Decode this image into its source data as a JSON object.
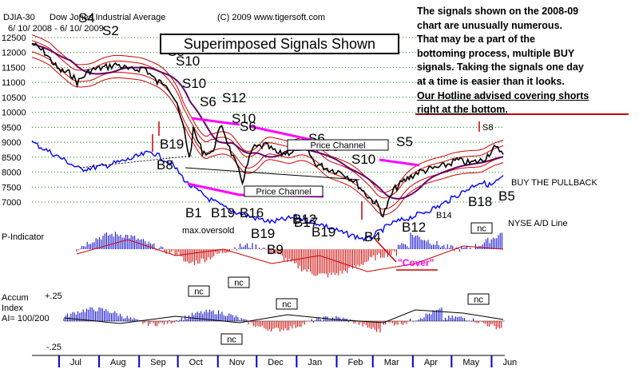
{
  "header": {
    "symbol": "DJIA-30",
    "name": "Dow Jones Industrial Average",
    "copyright": "(C) 2009 www.tigersoft.com",
    "date_range": "6/ 10/ 2008 - 6/ 10/ 2009"
  },
  "overlay_title": "Superimposed Signals Shown",
  "note": {
    "lines": [
      "The signals shown on the 2008-09",
      "chart are unusually numerous.",
      "That may be a part of the",
      "bottoming process, multiple BUY",
      "signals.  Taking the signals one day",
      "at a time is easier than it looks."
    ],
    "hotline_lines": [
      "Our Hotline advised covering shorts",
      "right at the bottom."
    ]
  },
  "colors": {
    "price": "#000000",
    "bands": "#cc0000",
    "ad_line": "#0000ff",
    "pink": "#ff00ff",
    "indicator_pos": "#0000cc",
    "indicator_neg": "#cc0000",
    "grid": "#008800"
  },
  "chart_data": {
    "type": "line",
    "price_panel": {
      "y_ticks": [
        12500,
        12000,
        11500,
        11000,
        10500,
        10000,
        9500,
        9000,
        8500,
        8000,
        7500,
        7000
      ],
      "ylim": [
        6500,
        12600
      ],
      "months": [
        "Jul",
        "Aug",
        "Sep",
        "Oct",
        "Nov",
        "Dec",
        "Jan",
        "Feb",
        "Mar",
        "Apr",
        "May",
        "Jun"
      ],
      "series": [
        {
          "x": [
            "2008-06-10",
            "2008-06-20",
            "2008-07-01",
            "2008-07-10",
            "2008-07-15",
            "2008-07-25",
            "2008-08-05",
            "2008-08-15",
            "2008-08-25",
            "2008-09-05",
            "2008-09-15",
            "2008-09-22",
            "2008-09-29",
            "2008-10-06",
            "2008-10-10",
            "2008-10-13",
            "2008-10-20",
            "2008-10-27",
            "2008-11-04",
            "2008-11-10",
            "2008-11-20",
            "2008-11-28",
            "2008-12-08",
            "2008-12-18",
            "2008-12-30",
            "2009-01-06",
            "2009-01-15",
            "2009-01-26",
            "2009-02-05",
            "2009-02-15",
            "2009-02-25",
            "2009-03-05",
            "2009-03-09",
            "2009-03-17",
            "2009-03-25",
            "2009-04-05",
            "2009-04-15",
            "2009-04-25",
            "2009-05-05",
            "2009-05-15",
            "2009-05-25",
            "2009-06-03",
            "2009-06-10"
          ],
          "values": [
            12300,
            12000,
            11400,
            11300,
            11000,
            11400,
            11500,
            11600,
            11400,
            11500,
            11000,
            11000,
            10400,
            9400,
            8450,
            9400,
            8700,
            8600,
            9600,
            8800,
            7700,
            8800,
            8900,
            8600,
            8700,
            9000,
            8300,
            8100,
            8000,
            7700,
            7200,
            6900,
            6550,
            7400,
            7700,
            8000,
            8100,
            8200,
            8400,
            8300,
            8400,
            8800,
            8700
          ]
        }
      ]
    },
    "indicators": [
      {
        "name": "P-Indicator"
      },
      {
        "name": "Accum Index",
        "params": "AI= 100/200",
        "y_ticks": [
          "+.25",
          "-.25"
        ]
      }
    ],
    "annotations": {
      "signals": [
        "S4",
        "S2",
        "S8",
        "S10",
        "S10",
        "S6",
        "S12",
        "S10",
        "S6",
        "S6",
        "S5",
        "S5",
        "S10",
        "S8",
        "B19",
        "B8",
        "B1",
        "B19",
        "B16",
        "B19",
        "B9",
        "B12",
        "B17",
        "B19",
        "B4",
        "B12",
        "B14",
        "B18",
        "B5"
      ],
      "labels": [
        "Price Channel",
        "Price Channel",
        "max.oversold",
        "\"Cover\"",
        "BUY THE PULLBACK",
        "NYSE A/D Line",
        "nc",
        "nc",
        "nc",
        "nc",
        "nc",
        "nc"
      ]
    }
  }
}
